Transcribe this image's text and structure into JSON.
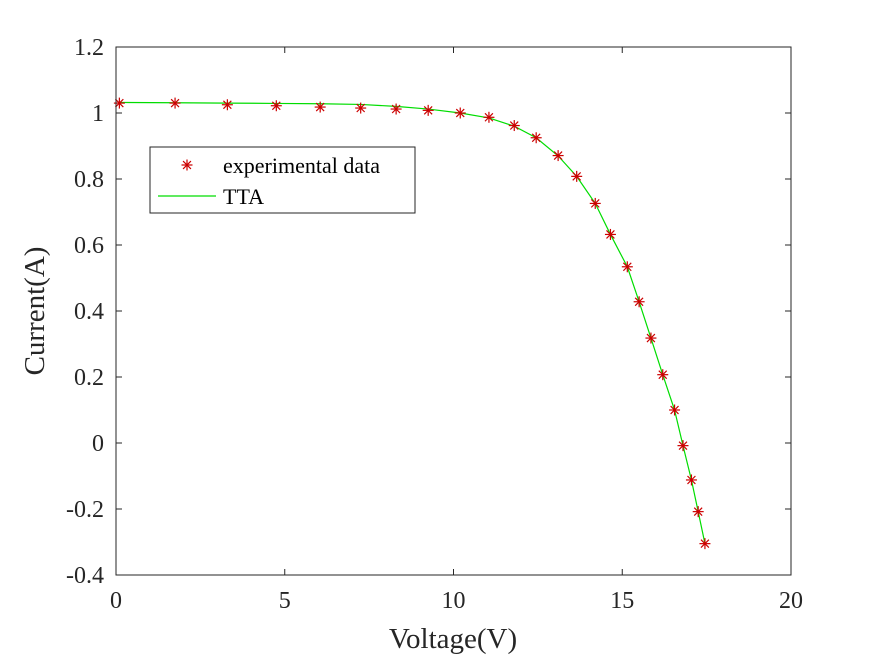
{
  "chart_data": {
    "type": "line",
    "title": "",
    "xlabel": "Voltage(V)",
    "ylabel": "Current(A)",
    "xlim": [
      0,
      20
    ],
    "ylim": [
      -0.4,
      1.2
    ],
    "xticks": [
      0,
      5,
      10,
      15,
      20
    ],
    "xtick_labels": [
      "0",
      "5",
      "10",
      "15",
      "20"
    ],
    "yticks": [
      -0.4,
      -0.2,
      0,
      0.2,
      0.4,
      0.6,
      0.8,
      1,
      1.2
    ],
    "ytick_labels": [
      "-0.4",
      "-0.2",
      "0",
      "0.2",
      "0.4",
      "0.6",
      "0.8",
      "1",
      "1.2"
    ],
    "grid": false,
    "legend_position": "upper-left",
    "series": [
      {
        "name": "experimental data",
        "style": "marker",
        "marker": "asterisk",
        "color": "#cc0000",
        "x": [
          0.1,
          1.75,
          3.3,
          4.75,
          6.05,
          7.25,
          8.3,
          9.25,
          10.2,
          11.05,
          11.8,
          12.45,
          13.1,
          13.65,
          14.2,
          14.65,
          15.15,
          15.5,
          15.85,
          16.2,
          16.55,
          16.8,
          17.05,
          17.25,
          17.45
        ],
        "y": [
          1.03,
          1.03,
          1.025,
          1.022,
          1.018,
          1.015,
          1.012,
          1.008,
          1.0,
          0.987,
          0.962,
          0.925,
          0.871,
          0.808,
          0.726,
          0.632,
          0.534,
          0.428,
          0.318,
          0.207,
          0.1,
          -0.008,
          -0.112,
          -0.208,
          -0.305
        ]
      },
      {
        "name": "TTA",
        "style": "line",
        "color": "#00dd00",
        "x": [
          0.1,
          1.75,
          3.3,
          4.75,
          6.05,
          7.25,
          8.3,
          9.25,
          10.2,
          11.05,
          11.8,
          12.45,
          13.1,
          13.65,
          14.2,
          14.65,
          15.15,
          15.5,
          15.85,
          16.2,
          16.55,
          16.8,
          17.05,
          17.25,
          17.45
        ],
        "y": [
          1.032,
          1.031,
          1.03,
          1.029,
          1.028,
          1.026,
          1.02,
          1.012,
          1.0,
          0.985,
          0.96,
          0.925,
          0.87,
          0.808,
          0.726,
          0.632,
          0.534,
          0.428,
          0.318,
          0.207,
          0.1,
          -0.008,
          -0.112,
          -0.208,
          -0.305
        ]
      }
    ]
  }
}
